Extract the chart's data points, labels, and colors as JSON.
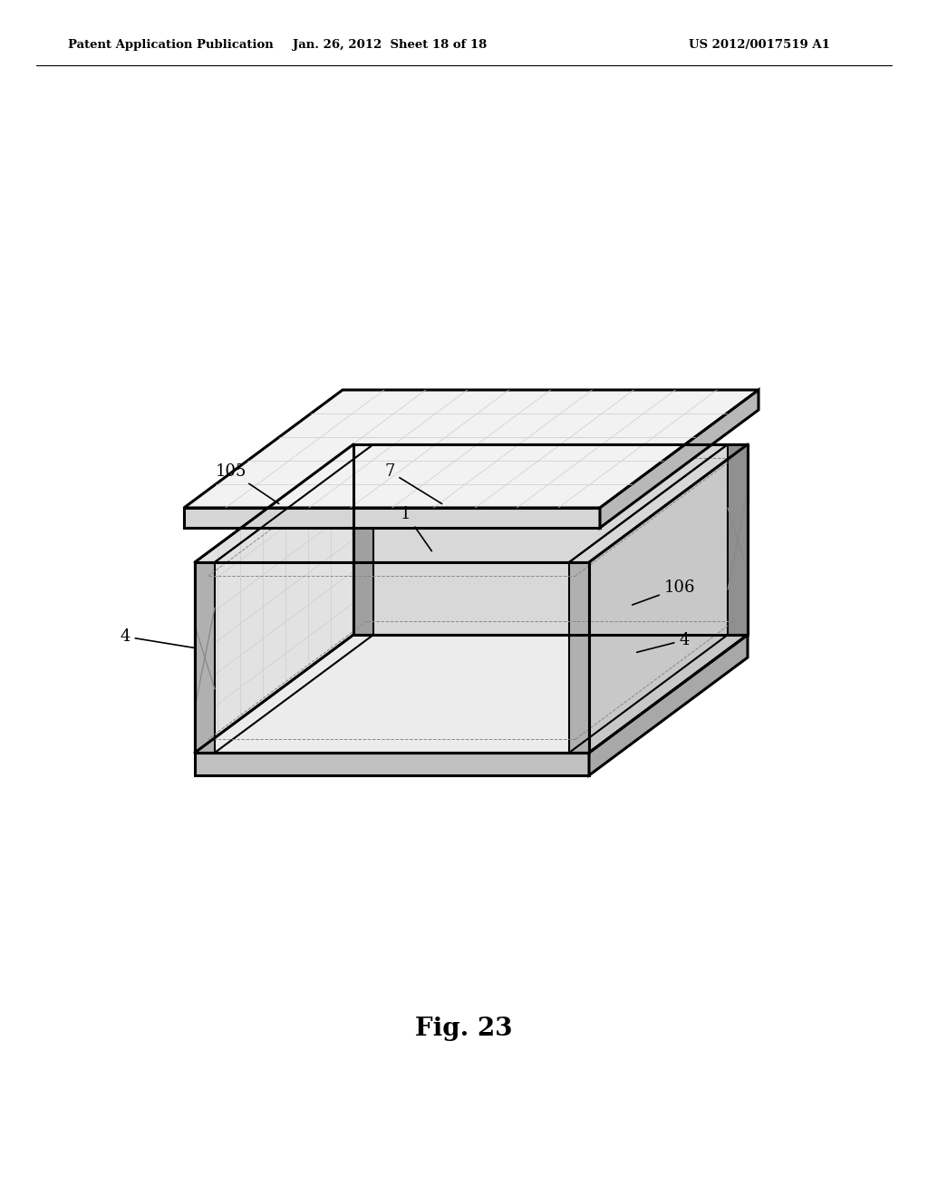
{
  "bg_color": "#ffffff",
  "line_color": "#000000",
  "gray_color": "#888888",
  "light_gray": "#cccccc",
  "header_text": "Patent Application Publication",
  "header_date": "Jan. 26, 2012  Sheet 18 of 18",
  "header_patent": "US 2012/0017519 A1",
  "fig_label": "Fig. 23"
}
